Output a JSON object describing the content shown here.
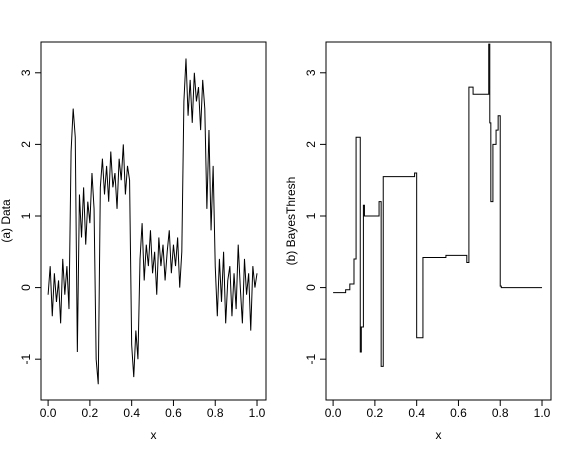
{
  "chart_data": [
    {
      "type": "line",
      "x_label": "x",
      "y_label": "(a) Data",
      "color": "#000000",
      "xlim": [
        -0.034,
        1.043
      ],
      "ylim": [
        -1.57,
        3.43
      ],
      "xticks": [
        {
          "value": 0,
          "label": "0.0"
        },
        0.2,
        0.4,
        0.6,
        0.8,
        {
          "value": 1,
          "label": "1.0"
        }
      ],
      "yticks": [
        -1,
        0,
        1,
        2,
        3
      ],
      "x": [
        0,
        0.01,
        0.02,
        0.03,
        0.04,
        0.05,
        0.06,
        0.07,
        0.08,
        0.09,
        0.1,
        0.11,
        0.12,
        0.13,
        0.14,
        0.15,
        0.16,
        0.17,
        0.18,
        0.19,
        0.2,
        0.21,
        0.22,
        0.23,
        0.24,
        0.25,
        0.26,
        0.27,
        0.28,
        0.29,
        0.3,
        0.31,
        0.32,
        0.33,
        0.34,
        0.35,
        0.36,
        0.37,
        0.38,
        0.39,
        0.4,
        0.41,
        0.42,
        0.43,
        0.44,
        0.45,
        0.46,
        0.47,
        0.48,
        0.49,
        0.5,
        0.51,
        0.52,
        0.53,
        0.54,
        0.55,
        0.56,
        0.57,
        0.58,
        0.59,
        0.6,
        0.61,
        0.62,
        0.63,
        0.64,
        0.65,
        0.66,
        0.67,
        0.68,
        0.69,
        0.7,
        0.71,
        0.72,
        0.73,
        0.74,
        0.75,
        0.76,
        0.77,
        0.78,
        0.79,
        0.8,
        0.81,
        0.82,
        0.83,
        0.84,
        0.85,
        0.86,
        0.87,
        0.88,
        0.89,
        0.9,
        0.91,
        0.92,
        0.93,
        0.94,
        0.95,
        0.96,
        0.97,
        0.98,
        0.99,
        1.0
      ],
      "values": [
        -0.1,
        0.3,
        -0.4,
        0.2,
        -0.2,
        0.1,
        -0.5,
        0.4,
        -0.1,
        0.3,
        -0.3,
        1.9,
        2.5,
        2.1,
        -0.9,
        1.3,
        0.7,
        1.4,
        0.6,
        1.2,
        0.9,
        1.6,
        1.1,
        -1.0,
        -1.35,
        1.4,
        1.8,
        1.3,
        1.7,
        1.2,
        1.9,
        1.4,
        1.6,
        1.1,
        1.8,
        1.5,
        2.0,
        1.3,
        1.7,
        1.5,
        -0.8,
        -1.25,
        -0.6,
        -1.0,
        0.4,
        0.9,
        0.1,
        0.6,
        0.3,
        0.8,
        0.2,
        0.5,
        -0.1,
        0.7,
        0.3,
        0.6,
        0.1,
        0.5,
        0.8,
        0.2,
        0.6,
        0.3,
        0.7,
        0.0,
        0.5,
        2.6,
        3.2,
        2.4,
        2.9,
        2.3,
        3.0,
        2.6,
        2.8,
        2.2,
        2.9,
        2.5,
        1.1,
        2.2,
        0.8,
        1.7,
        0.3,
        -0.4,
        0.4,
        -0.2,
        0.5,
        -0.5,
        0.1,
        0.3,
        -0.4,
        0.2,
        -0.3,
        0.6,
        0.0,
        -0.5,
        0.4,
        -0.1,
        0.2,
        -0.6,
        0.3,
        0.0,
        0.2
      ]
    },
    {
      "type": "line",
      "x_label": "x",
      "y_label": "(b) BayesThresh",
      "color": "#000000",
      "xlim": [
        -0.034,
        1.043
      ],
      "ylim": [
        -1.57,
        3.43
      ],
      "xticks": [
        {
          "value": 0,
          "label": "0.0"
        },
        0.2,
        0.4,
        0.6,
        0.8,
        {
          "value": 1,
          "label": "1.0"
        }
      ],
      "yticks": [
        -1,
        0,
        1,
        2,
        3
      ],
      "x": [
        0,
        0.06,
        0.06,
        0.08,
        0.08,
        0.1,
        0.1,
        0.11,
        0.11,
        0.13,
        0.13,
        0.135,
        0.135,
        0.145,
        0.145,
        0.15,
        0.15,
        0.22,
        0.22,
        0.23,
        0.23,
        0.24,
        0.24,
        0.39,
        0.39,
        0.4,
        0.4,
        0.43,
        0.43,
        0.54,
        0.54,
        0.64,
        0.64,
        0.65,
        0.65,
        0.67,
        0.67,
        0.745,
        0.745,
        0.75,
        0.75,
        0.755,
        0.755,
        0.765,
        0.765,
        0.78,
        0.78,
        0.79,
        0.79,
        0.8,
        0.8,
        0.805,
        0.805,
        1.0
      ],
      "values": [
        -0.07,
        -0.07,
        -0.03,
        -0.03,
        0.05,
        0.05,
        0.4,
        0.4,
        2.1,
        2.1,
        -0.9,
        -0.9,
        -0.55,
        -0.55,
        1.15,
        1.15,
        1.0,
        1.0,
        1.2,
        1.2,
        -1.1,
        -1.1,
        1.55,
        1.55,
        1.6,
        1.6,
        -0.7,
        -0.7,
        0.42,
        0.42,
        0.45,
        0.45,
        0.35,
        0.35,
        2.8,
        2.8,
        2.7,
        2.7,
        3.4,
        3.4,
        2.3,
        2.3,
        1.2,
        1.2,
        2.0,
        2.0,
        2.2,
        2.2,
        2.4,
        2.4,
        0.02,
        0.02,
        0.0,
        0.0
      ]
    }
  ]
}
